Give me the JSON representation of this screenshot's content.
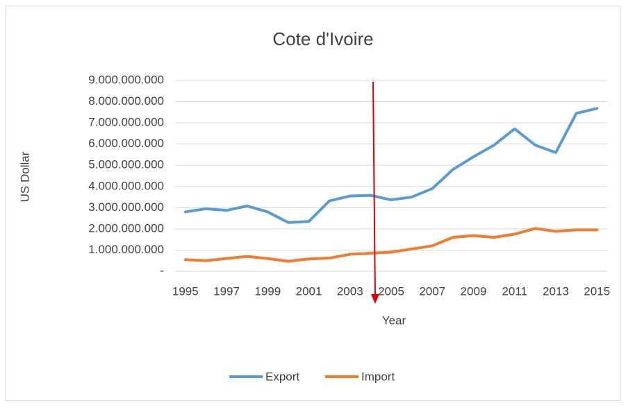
{
  "chart_data": {
    "type": "line",
    "title": "Cote d'Ivoire",
    "x_label": "Year",
    "y_label": "US Dollar",
    "categories": [
      "1995",
      null,
      "1997",
      null,
      "1999",
      null,
      "2001",
      null,
      "2003",
      null,
      "2005",
      null,
      "2007",
      null,
      "2009",
      null,
      "2011",
      null,
      "2013",
      null,
      "2015"
    ],
    "series": [
      {
        "name": "Export",
        "color": "#5b9bd5",
        "values": [
          2800000000,
          2950000000,
          2870000000,
          3080000000,
          2800000000,
          2300000000,
          2350000000,
          3320000000,
          3550000000,
          3580000000,
          3370000000,
          3500000000,
          3900000000,
          4800000000,
          5400000000,
          5950000000,
          6720000000,
          5950000000,
          5600000000,
          7450000000,
          7680000000
        ]
      },
      {
        "name": "Import",
        "color": "#ed7d31",
        "values": [
          550000000,
          500000000,
          600000000,
          700000000,
          600000000,
          470000000,
          580000000,
          620000000,
          800000000,
          850000000,
          900000000,
          1050000000,
          1200000000,
          1600000000,
          1680000000,
          1600000000,
          1750000000,
          2020000000,
          1880000000,
          1950000000,
          1950000000
        ]
      }
    ],
    "ylim": [
      0,
      9000000000
    ],
    "yticks": [
      {
        "value": 0,
        "label": "-"
      },
      {
        "value": 1000000000,
        "label": "1.000.000.000"
      },
      {
        "value": 2000000000,
        "label": "2.000.000.000"
      },
      {
        "value": 3000000000,
        "label": "3.000.000.000"
      },
      {
        "value": 4000000000,
        "label": "4.000.000.000"
      },
      {
        "value": 5000000000,
        "label": "5.000.000.000"
      },
      {
        "value": 6000000000,
        "label": "6.000.000.000"
      },
      {
        "value": 7000000000,
        "label": "7.000.000.000"
      },
      {
        "value": 8000000000,
        "label": "8.000.000.000"
      },
      {
        "value": 9000000000,
        "label": "9.000.000.000"
      }
    ],
    "grid": true,
    "legend": "bottom"
  }
}
